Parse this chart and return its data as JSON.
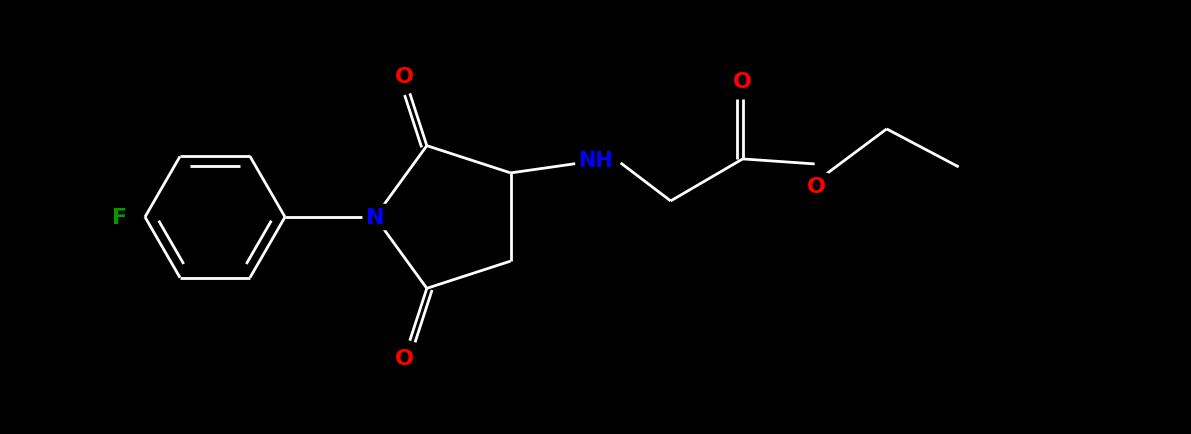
{
  "background_color": "#000000",
  "atom_colors": {
    "O": "#ff0000",
    "N": "#0000ff",
    "F": "#009900"
  },
  "lw": 2.0,
  "fs": 15,
  "xlim": [
    0,
    11.91
  ],
  "ylim": [
    0,
    4.35
  ]
}
